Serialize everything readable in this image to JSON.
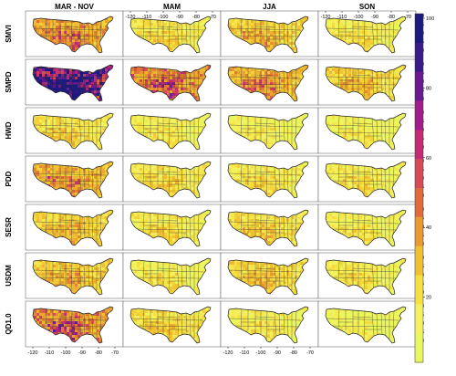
{
  "columns": [
    "MAR - NOV",
    "MAM",
    "JJA",
    "SON"
  ],
  "rows": [
    {
      "label": "SMVI",
      "levels": [
        0.55,
        0.22,
        0.38,
        0.18
      ]
    },
    {
      "label": "SMPD",
      "levels": [
        0.92,
        0.62,
        0.5,
        0.35
      ]
    },
    {
      "label": "HWD",
      "levels": [
        0.25,
        0.15,
        0.1,
        0.1
      ]
    },
    {
      "label": "PDD",
      "levels": [
        0.5,
        0.25,
        0.22,
        0.18
      ]
    },
    {
      "label": "SESR",
      "levels": [
        0.38,
        0.2,
        0.3,
        0.15
      ]
    },
    {
      "label": "USDM",
      "levels": [
        0.4,
        0.15,
        0.35,
        0.18
      ]
    },
    {
      "label": "QD1.0",
      "levels": [
        0.62,
        0.28,
        0.15,
        0.05
      ]
    }
  ],
  "lon_ticks": [
    "-120",
    "-110",
    "-100",
    "-90",
    "-80",
    "-70"
  ],
  "lat_ticks": [
    "50",
    "45",
    "40",
    "35",
    "30"
  ],
  "colorbar": {
    "ticks": [
      "100",
      "80",
      "60",
      "40",
      "20"
    ],
    "colors": [
      "#1a1a80",
      "#3a1a8a",
      "#6a1a90",
      "#a51b8c",
      "#c52a73",
      "#d84a55",
      "#e06a3a",
      "#e89a30",
      "#f0c030",
      "#f5e040",
      "#f5f060",
      "#e8f85a"
    ]
  }
}
